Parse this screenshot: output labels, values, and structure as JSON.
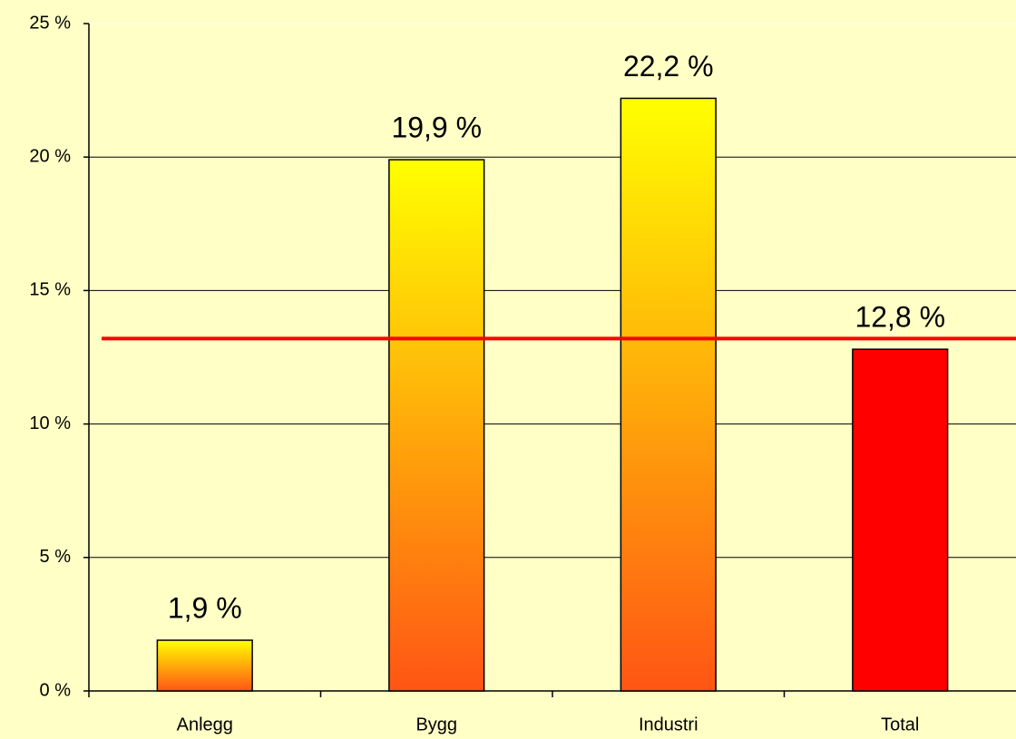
{
  "chart_data": {
    "type": "bar",
    "categories": [
      "Anlegg",
      "Bygg",
      "Industri",
      "Total"
    ],
    "values": [
      1.9,
      19.9,
      22.2,
      12.8
    ],
    "value_labels": [
      "1,9 %",
      "19,9 %",
      "22,2 %",
      "12,8 %"
    ],
    "bar_fills": [
      {
        "top": "#ffff00",
        "bottom": "#ff5514"
      },
      {
        "top": "#ffff00",
        "bottom": "#ff5514"
      },
      {
        "top": "#ffff00",
        "bottom": "#ff5514"
      },
      {
        "top": "#ff0000",
        "bottom": "#ff0000"
      }
    ],
    "ylim": [
      0,
      25
    ],
    "yticks": [
      {
        "value": 0,
        "label": "0 %"
      },
      {
        "value": 5,
        "label": "5 %"
      },
      {
        "value": 10,
        "label": "10 %"
      },
      {
        "value": 15,
        "label": "15 %"
      },
      {
        "value": 20,
        "label": "20 %"
      },
      {
        "value": 25,
        "label": "25 %"
      }
    ],
    "grid": true,
    "reference_line": {
      "value": 13.2,
      "color": "#ff0000"
    }
  }
}
